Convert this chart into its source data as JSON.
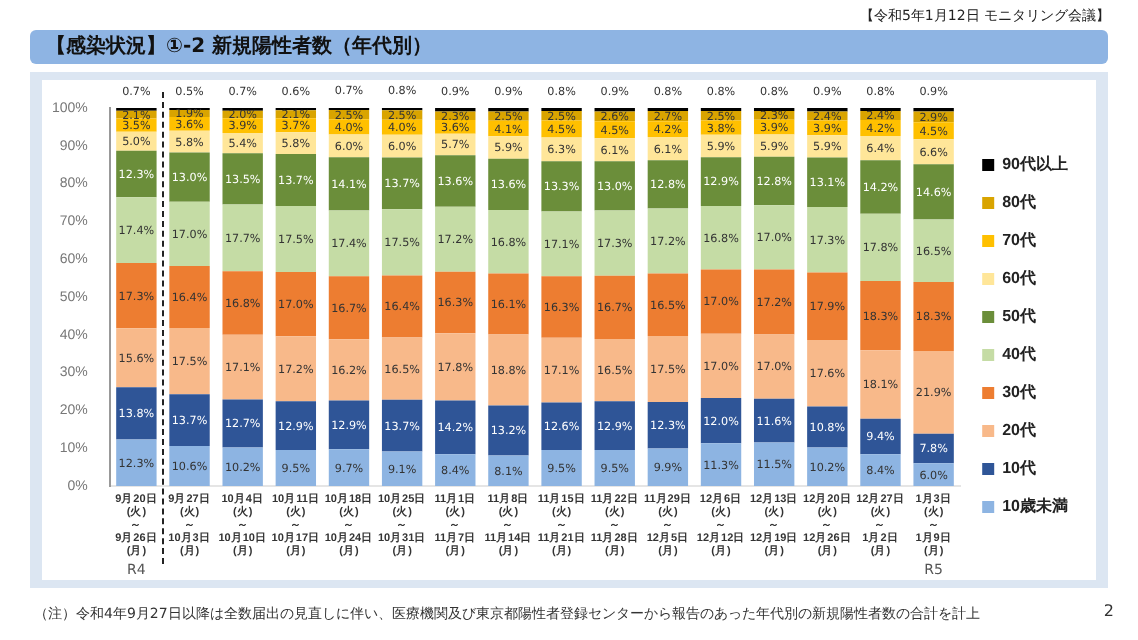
{
  "chart_data": {
    "type": "bar",
    "stacked": true,
    "title": "【感染状況】①-2 新規陽性者数（年代別）",
    "subtitle": "【令和5年1月12日 モニタリング会議】",
    "categories": [
      "9月20日\n(火)\n～\n9月26日\n(月)",
      "9月27日\n(火)\n～\n10月3日\n(月)",
      "10月4日\n(火)\n～\n10月10日\n(月)",
      "10月11日\n(火)\n～\n10月17日\n(月)",
      "10月18日\n(火)\n～\n10月24日\n(月)",
      "10月25日\n(火)\n～\n10月31日\n(月)",
      "11月1日\n(火)\n～\n11月7日\n(月)",
      "11月8日\n(火)\n～\n11月14日\n(月)",
      "11月15日\n(火)\n～\n11月21日\n(月)",
      "11月22日\n(火)\n～\n11月28日\n(月)",
      "11月29日\n(火)\n～\n12月5日\n(月)",
      "12月6日\n(火)\n～\n12月12日\n(月)",
      "12月13日\n(火)\n～\n12月19日\n(月)",
      "12月20日\n(火)\n～\n12月26日\n(月)",
      "12月27日\n(火)\n～\n1月2日\n(月)",
      "1月3日\n(火)\n～\n1月9日\n(月)"
    ],
    "series": [
      {
        "name": "10歳未満",
        "color": "#8db4e2",
        "values": [
          12.3,
          10.6,
          10.2,
          9.5,
          9.7,
          9.1,
          8.4,
          8.1,
          9.5,
          9.5,
          9.9,
          11.3,
          11.5,
          10.2,
          8.4,
          6.0
        ],
        "value_labels": [
          "12.3%",
          "10.6%",
          "10.2%",
          "9.5%",
          "9.7%",
          "9.1%",
          "8.4%",
          "8.1%",
          "9.5%",
          "9.5%",
          "9.9%",
          "11.3%",
          "11.5%",
          "10.2%",
          "8.4%",
          "6.0%"
        ]
      },
      {
        "name": "10代",
        "color": "#2f5597",
        "values": [
          13.8,
          13.7,
          12.7,
          12.9,
          12.9,
          13.7,
          14.2,
          13.2,
          12.6,
          12.9,
          12.3,
          12.0,
          11.6,
          10.8,
          9.4,
          7.8
        ],
        "value_labels": [
          "13.8%",
          "13.7%",
          "12.7%",
          "12.9%",
          "12.9%",
          "13.7%",
          "14.2%",
          "13.2%",
          "12.6%",
          "12.9%",
          "12.3%",
          "12.0%",
          "11.6%",
          "10.8%",
          "9.4%",
          "7.8%"
        ]
      },
      {
        "name": "20代",
        "color": "#f8b98a",
        "values": [
          15.6,
          17.5,
          17.1,
          17.2,
          16.2,
          16.5,
          17.8,
          18.8,
          17.1,
          16.5,
          17.5,
          17.0,
          17.0,
          17.6,
          18.1,
          21.9
        ],
        "value_labels": [
          "15.6%",
          "17.5%",
          "17.1%",
          "17.2%",
          "16.2%",
          "16.5%",
          "17.8%",
          "18.8%",
          "17.1%",
          "16.5%",
          "17.5%",
          "17.0%",
          "17.0%",
          "17.6%",
          "18.1%",
          "21.9%"
        ]
      },
      {
        "name": "30代",
        "color": "#ed7d31",
        "values": [
          17.3,
          16.4,
          16.8,
          17.0,
          16.7,
          16.4,
          16.3,
          16.1,
          16.3,
          16.7,
          16.5,
          17.0,
          17.2,
          17.9,
          18.3,
          18.3
        ],
        "value_labels": [
          "17.3%",
          "16.4%",
          "16.8%",
          "17.0%",
          "16.7%",
          "16.4%",
          "16.3%",
          "16.1%",
          "16.3%",
          "16.7%",
          "16.5%",
          "17.0%",
          "17.2%",
          "17.9%",
          "18.3%",
          "18.3%"
        ]
      },
      {
        "name": "40代",
        "color": "#c5dca5",
        "values": [
          17.4,
          17.0,
          17.7,
          17.5,
          17.4,
          17.5,
          17.2,
          16.8,
          17.1,
          17.3,
          17.2,
          16.8,
          17.0,
          17.3,
          17.8,
          16.5
        ],
        "value_labels": [
          "17.4%",
          "17.0%",
          "17.7%",
          "17.5%",
          "17.4%",
          "17.5%",
          "17.2%",
          "16.8%",
          "17.1%",
          "17.3%",
          "17.2%",
          "16.8%",
          "17.0%",
          "17.3%",
          "17.8%",
          "16.5%"
        ]
      },
      {
        "name": "50代",
        "color": "#6b8e3a",
        "values": [
          12.3,
          13.0,
          13.5,
          13.7,
          14.1,
          13.7,
          13.6,
          13.6,
          13.3,
          13.0,
          12.8,
          12.9,
          12.8,
          13.1,
          14.2,
          14.6
        ],
        "value_labels": [
          "12.3%",
          "13.0%",
          "13.5%",
          "13.7%",
          "14.1%",
          "13.7%",
          "13.6%",
          "13.6%",
          "13.3%",
          "13.0%",
          "12.8%",
          "12.9%",
          "12.8%",
          "13.1%",
          "14.2%",
          "14.6%"
        ]
      },
      {
        "name": "60代",
        "color": "#ffe699",
        "values": [
          5.0,
          5.8,
          5.4,
          5.8,
          6.0,
          6.0,
          5.7,
          5.9,
          6.3,
          6.1,
          6.1,
          5.9,
          5.9,
          5.9,
          6.4,
          6.6
        ],
        "value_labels": [
          "5.0%",
          "5.8%",
          "5.4%",
          "5.8%",
          "6.0%",
          "6.0%",
          "5.7%",
          "5.9%",
          "6.3%",
          "6.1%",
          "6.1%",
          "5.9%",
          "5.9%",
          "5.9%",
          "6.4%",
          "6.6%"
        ]
      },
      {
        "name": "70代",
        "color": "#ffc000",
        "values": [
          3.5,
          3.6,
          3.9,
          3.7,
          4.0,
          4.0,
          3.6,
          4.1,
          4.5,
          4.5,
          4.2,
          3.8,
          3.9,
          3.9,
          4.2,
          4.5
        ],
        "value_labels": [
          "3.5%",
          "3.6%",
          "3.9%",
          "3.7%",
          "4.0%",
          "4.0%",
          "3.6%",
          "4.1%",
          "4.5%",
          "4.5%",
          "4.2%",
          "3.8%",
          "3.9%",
          "3.9%",
          "4.2%",
          "4.5%"
        ]
      },
      {
        "name": "80代",
        "color": "#d9a400",
        "values": [
          2.1,
          1.9,
          2.0,
          2.1,
          2.5,
          2.5,
          2.3,
          2.5,
          2.5,
          2.6,
          2.7,
          2.5,
          2.3,
          2.4,
          2.4,
          2.9
        ],
        "value_labels": [
          "2.1%",
          "1.9%",
          "2.0%",
          "2.1%",
          "2.5%",
          "2.5%",
          "2.3%",
          "2.5%",
          "2.5%",
          "2.6%",
          "2.7%",
          "2.5%",
          "2.3%",
          "2.4%",
          "2.4%",
          "2.9%"
        ]
      },
      {
        "name": "90代以上",
        "color": "#000000",
        "values": [
          0.7,
          0.5,
          0.7,
          0.6,
          0.7,
          0.8,
          0.9,
          0.9,
          0.8,
          0.9,
          0.8,
          0.8,
          0.8,
          0.9,
          0.8,
          0.9
        ],
        "value_labels": [
          "0.7%",
          "0.5%",
          "0.7%",
          "0.6%",
          "0.7%",
          "0.8%",
          "0.9%",
          "0.9%",
          "0.8%",
          "0.9%",
          "0.8%",
          "0.8%",
          "0.8%",
          "0.9%",
          "0.8%",
          "0.9%"
        ]
      }
    ],
    "ylim": [
      0,
      100
    ],
    "yticks": [
      {
        "value": 0,
        "label": "0%"
      },
      {
        "value": 10,
        "label": "10%"
      },
      {
        "value": 20,
        "label": "20%"
      },
      {
        "value": 30,
        "label": "30%"
      },
      {
        "value": 40,
        "label": "40%"
      },
      {
        "value": 50,
        "label": "50%"
      },
      {
        "value": 60,
        "label": "60%"
      },
      {
        "value": 70,
        "label": "70%"
      },
      {
        "value": 80,
        "label": "80%"
      },
      {
        "value": 90,
        "label": "90%"
      },
      {
        "value": 100,
        "label": "100%"
      }
    ],
    "grid": false,
    "legend": "right",
    "annotations": [
      "R4",
      "R5",
      "（注）令和4年9月27日以降は全数届出の見直しに伴い、医療機関及び東京都陽性者登録センターから報告のあった年代別の新規陽性者数の合計を計上",
      "2"
    ]
  }
}
